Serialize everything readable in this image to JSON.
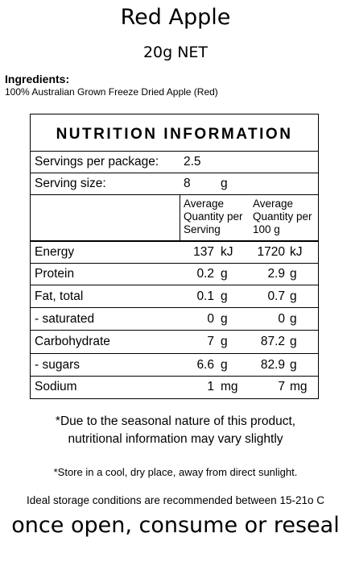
{
  "product": {
    "name": "Red Apple",
    "net": "20g NET"
  },
  "ingredients": {
    "heading": "Ingredients:",
    "text": "100% Australian Grown Freeze Dried Apple (Red)"
  },
  "nutrition": {
    "title": "NUTRITION INFORMATION",
    "servings_label": "Servings per package:",
    "servings_value": "2.5",
    "serving_size_label": "Serving size:",
    "serving_size_value": "8",
    "serving_size_unit": "g",
    "col_serving_header": [
      "Average",
      "Quantity per",
      "Serving"
    ],
    "col_100g_header": [
      "Average",
      "Quantity per",
      "100 g"
    ],
    "rows": [
      {
        "label": "Energy",
        "serving_value": "137",
        "serving_unit": "kJ",
        "per100_value": "1720",
        "per100_unit": "kJ"
      },
      {
        "label": "Protein",
        "serving_value": "0.2",
        "serving_unit": "g",
        "per100_value": "2.9",
        "per100_unit": "g"
      },
      {
        "label": "Fat, total",
        "serving_value": "0.1",
        "serving_unit": "g",
        "per100_value": "0.7",
        "per100_unit": "g"
      },
      {
        "label": "- saturated",
        "serving_value": "0",
        "serving_unit": "g",
        "per100_value": "0",
        "per100_unit": "g"
      },
      {
        "label": "Carbohydrate",
        "serving_value": "7",
        "serving_unit": "g",
        "per100_value": "87.2",
        "per100_unit": "g"
      },
      {
        "label": "- sugars",
        "serving_value": "6.6",
        "serving_unit": "g",
        "per100_value": "82.9",
        "per100_unit": "g"
      },
      {
        "label": "Sodium",
        "serving_value": "1",
        "serving_unit": "mg",
        "per100_value": "7",
        "per100_unit": "mg"
      }
    ]
  },
  "notes": {
    "seasonal_line1": "*Due to the seasonal nature of this product,",
    "seasonal_line2": "nutritional information may vary slightly",
    "store": "*Store in a cool, dry place, away from direct sunlight.",
    "ideal": "Ideal storage conditions are recommended between 15-21o C",
    "open": "once open, consume or reseal"
  }
}
